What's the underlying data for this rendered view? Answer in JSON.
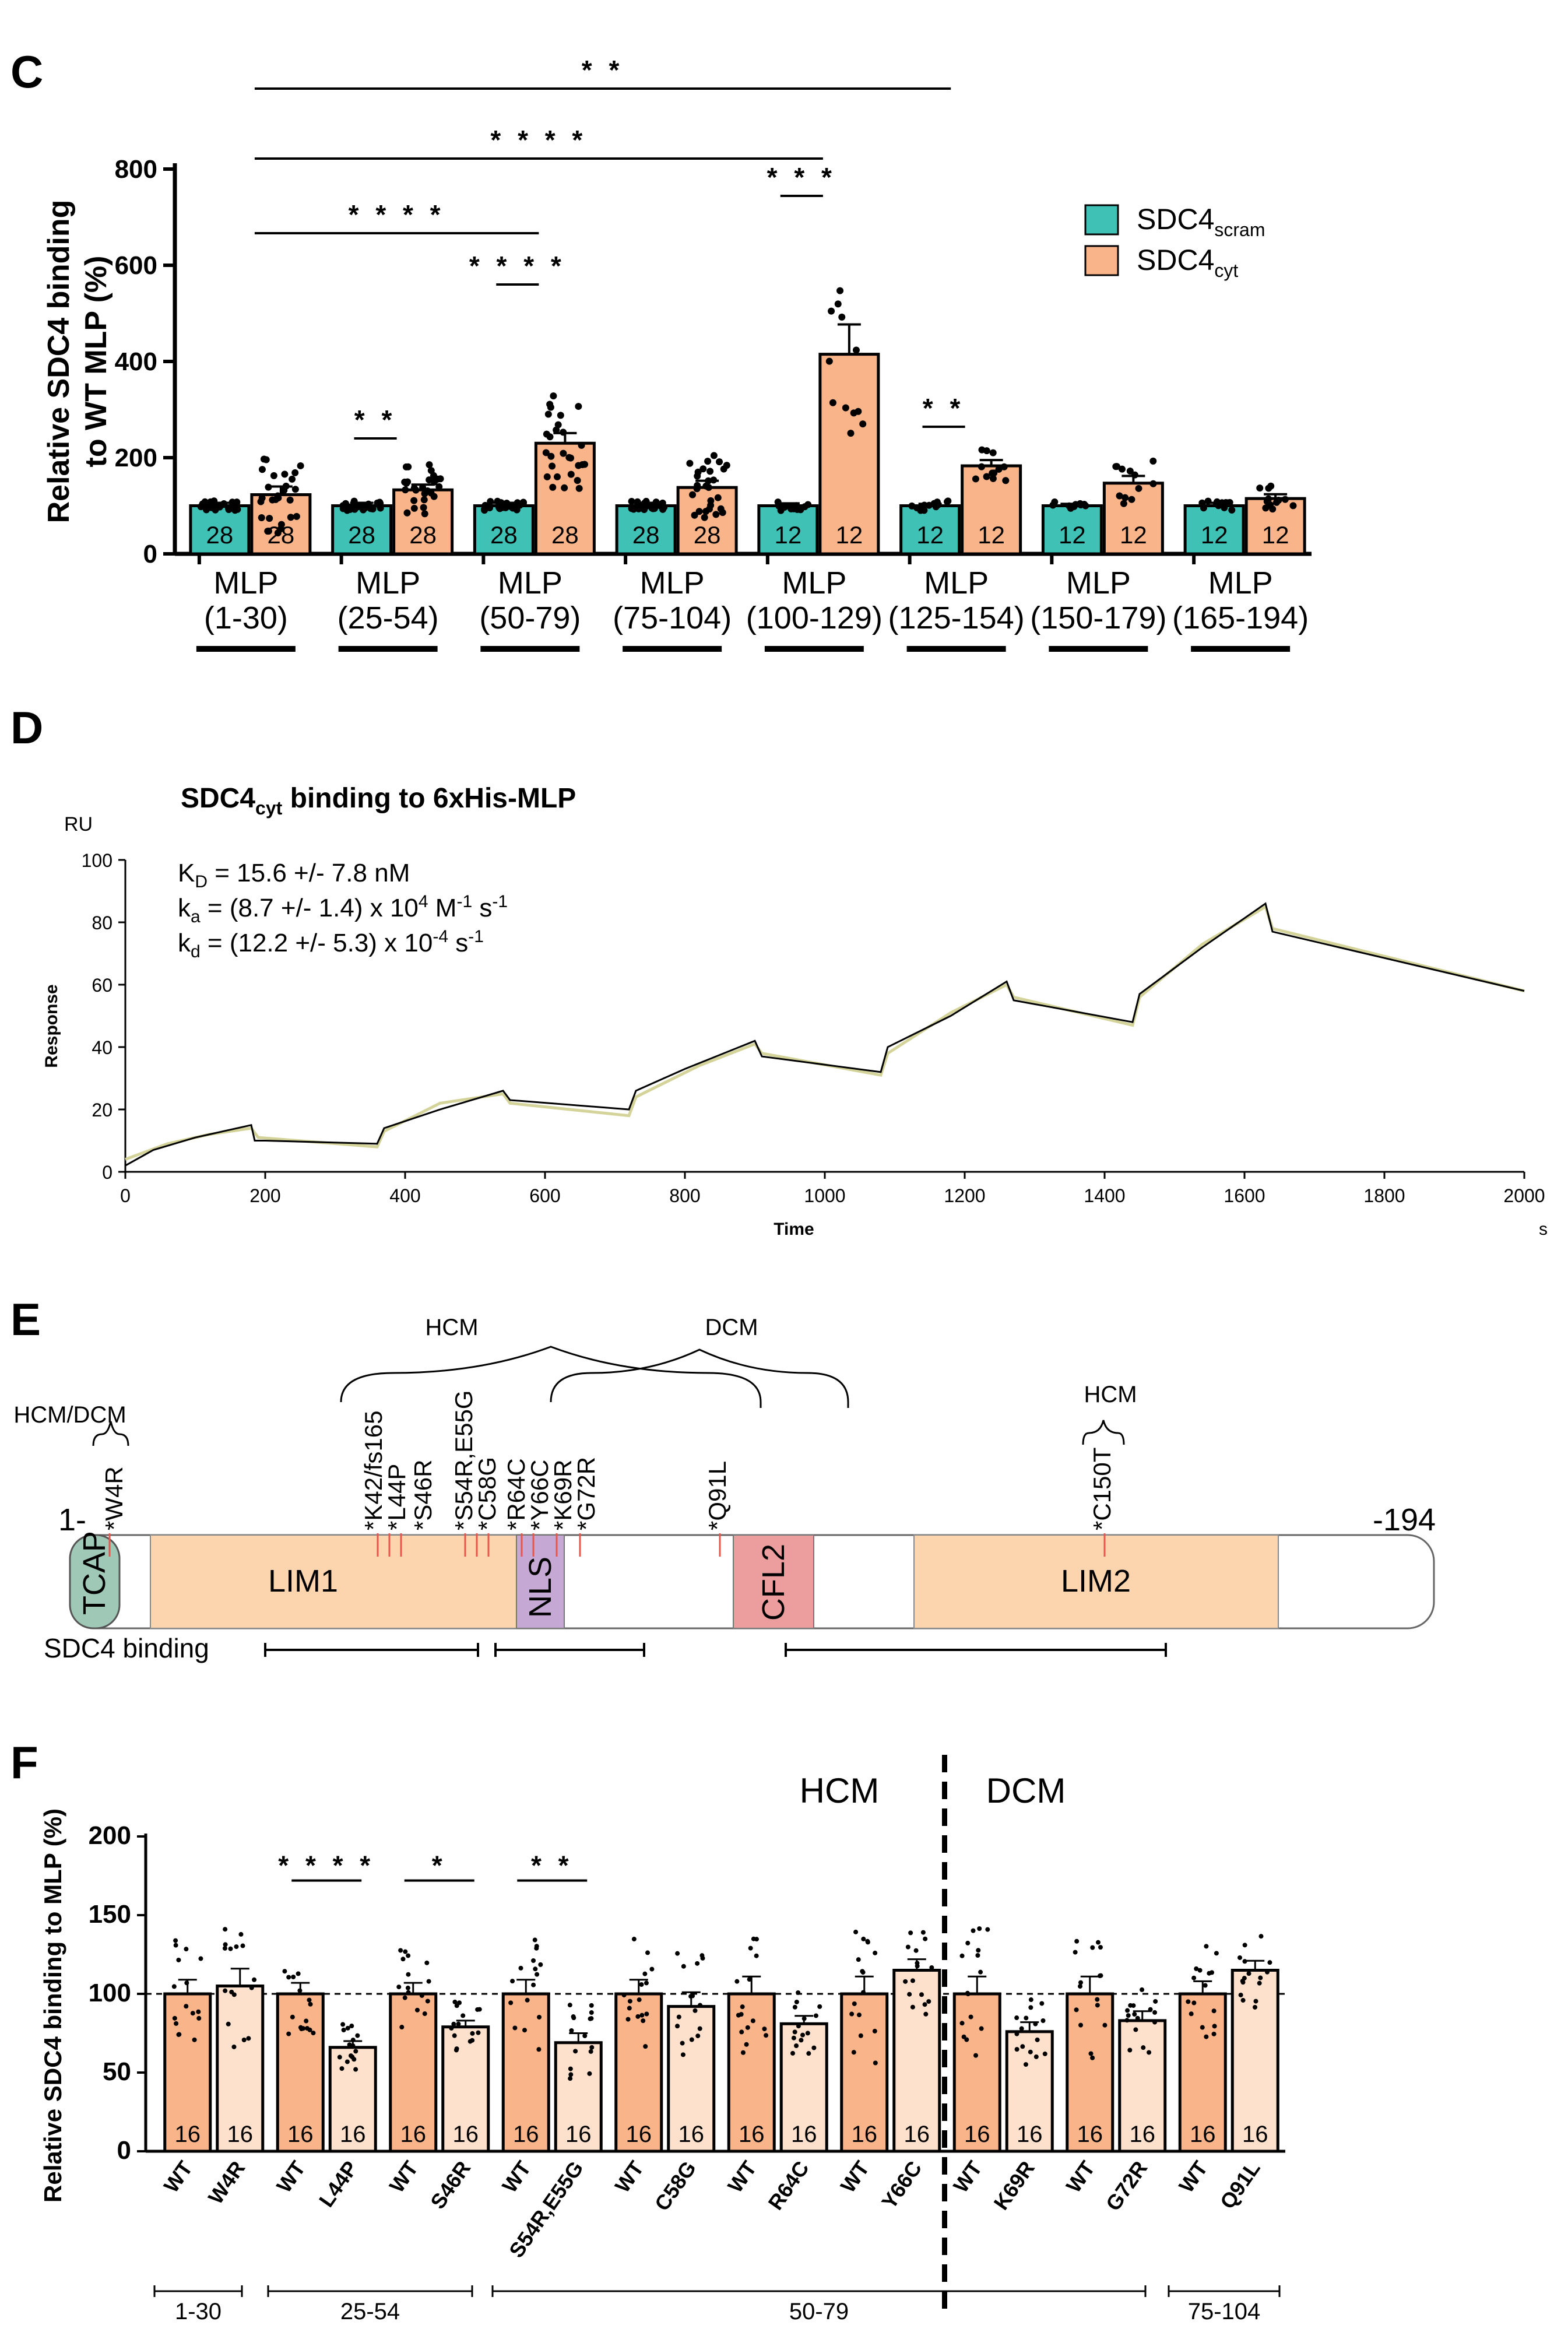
{
  "panels": {
    "C": "C",
    "D": "D",
    "E": "E",
    "F": "F"
  },
  "chart_data": [
    {
      "type": "bar",
      "panel": "C",
      "ylabel_line1": "Relative SDC4 binding",
      "ylabel_line2": "to WT MLP (%)",
      "ylim": [
        0,
        800
      ],
      "yticks": [
        "0",
        "200",
        "400",
        "600",
        "800"
      ],
      "categories": [
        {
          "l1": "MLP",
          "l2": "(1-30)"
        },
        {
          "l1": "MLP",
          "l2": "(25-54)"
        },
        {
          "l1": "MLP",
          "l2": "(50-79)"
        },
        {
          "l1": "MLP",
          "l2": "(75-104)"
        },
        {
          "l1": "MLP",
          "l2": "(100-129)"
        },
        {
          "l1": "MLP",
          "l2": "(125-154)"
        },
        {
          "l1": "MLP",
          "l2": "(150-179)"
        },
        {
          "l1": "MLP",
          "l2": "(165-194)"
        }
      ],
      "series": [
        {
          "name": "SDC4",
          "sub": "scram",
          "color": "#3fc1b5",
          "values": [
            100,
            100,
            100,
            100,
            100,
            100,
            100,
            100
          ],
          "sem": [
            6,
            6,
            6,
            6,
            5,
            4,
            4,
            6
          ],
          "n": [
            "28",
            "28",
            "28",
            "28",
            "12",
            "12",
            "12",
            "12"
          ]
        },
        {
          "name": "SDC4",
          "sub": "cyt",
          "color": "#f9b48a",
          "values": [
            123,
            133,
            230,
            138,
            415,
            183,
            147,
            115
          ],
          "sem": [
            17,
            11,
            21,
            14,
            62,
            12,
            15,
            9
          ],
          "n": [
            "28",
            "28",
            "28",
            "28",
            "12",
            "12",
            "12",
            "12"
          ]
        }
      ],
      "significance": [
        {
          "label": "* *",
          "from": 0,
          "to": 4.9
        },
        {
          "label": "* * * *",
          "from": 0,
          "to": 4
        },
        {
          "label": "* * * *",
          "from": 0,
          "to": 2
        },
        {
          "label": "* * * *",
          "from": 1.7,
          "to": 2
        },
        {
          "label": "* * *",
          "from": 3.7,
          "to": 4
        },
        {
          "label": "* *",
          "from": 0.7,
          "to": 1
        },
        {
          "label": "* *",
          "from": 4.7,
          "to": 5
        }
      ]
    },
    {
      "type": "line",
      "panel": "D",
      "title_pre": "SDC4",
      "title_sub": "cyt",
      "title_post": " binding to 6xHis-MLP",
      "yunit": "RU",
      "ylabel": "Response",
      "xlabel": "Time",
      "xunit": "s",
      "xlim": [
        0,
        2000
      ],
      "ylim": [
        0,
        100
      ],
      "xticks": [
        "0",
        "200",
        "400",
        "600",
        "800",
        "1000",
        "1200",
        "1400",
        "1600",
        "1800",
        "2000"
      ],
      "yticks": [
        "0",
        "20",
        "40",
        "60",
        "80",
        "100"
      ],
      "kinetics": {
        "kd_label": "K",
        "kd_sub": "D",
        "kd_value": " = 15.6 +/- 7.8 nM",
        "ka_label": "k",
        "ka_sub": "a",
        "ka_value": " = (8.7 +/- 1.4) x 10",
        "ka_exp": "4",
        "ka_unit": " M",
        "ka_unit_exp": "-1",
        "ka_s": " s",
        "ka_s_exp": "-1",
        "kdiss_label": "k",
        "kdiss_sub": "d",
        "kdiss_value": " = (12.2 +/- 5.3) x 10",
        "kdiss_exp": "-4",
        "kdiss_s": " s",
        "kdiss_s_exp": "-1"
      },
      "series": [
        {
          "name": "measured",
          "color": "#000000",
          "x": [
            0,
            40,
            100,
            180,
            185,
            200,
            360,
            370,
            450,
            540,
            550,
            720,
            730,
            800,
            900,
            910,
            1080,
            1090,
            1180,
            1260,
            1270,
            1440,
            1450,
            1540,
            1630,
            1640,
            2000
          ],
          "y": [
            2,
            7,
            11,
            15,
            10,
            10,
            9,
            14,
            20,
            26,
            23,
            20,
            26,
            33,
            42,
            37,
            32,
            40,
            50,
            61,
            55,
            48,
            57,
            72,
            86,
            77,
            58
          ]
        },
        {
          "name": "fit",
          "color": "#d4d49a",
          "x": [
            0,
            60,
            120,
            180,
            190,
            360,
            370,
            450,
            540,
            550,
            720,
            730,
            820,
            900,
            910,
            1080,
            1090,
            1180,
            1260,
            1270,
            1440,
            1450,
            1540,
            1630,
            1640,
            2000
          ],
          "y": [
            4,
            9,
            12,
            14,
            11,
            8,
            13,
            22,
            25,
            22,
            18,
            24,
            34,
            41,
            38,
            31,
            38,
            51,
            60,
            56,
            47,
            56,
            73,
            85,
            78,
            58
          ]
        }
      ]
    },
    {
      "type": "bar",
      "panel": "F",
      "ylabel": "Relative SDC4 binding to MLP (%)",
      "ylim": [
        0,
        200
      ],
      "yticks": [
        "0",
        "50",
        "100",
        "150",
        "200"
      ],
      "reference_line": 100,
      "group_labels": {
        "hcm": "HCM",
        "dcm": "DCM"
      },
      "pairs": [
        {
          "wt_label": "WT",
          "mut_label": "W4R",
          "wt": 100,
          "wt_sem": 9,
          "mut": 105,
          "mut_sem": 11,
          "sig": ""
        },
        {
          "wt_label": "WT",
          "mut_label": "L44P",
          "wt": 100,
          "wt_sem": 7,
          "mut": 66,
          "mut_sem": 4,
          "sig": "* * * *"
        },
        {
          "wt_label": "WT",
          "mut_label": "S46R",
          "wt": 100,
          "wt_sem": 7,
          "mut": 79,
          "mut_sem": 4,
          "sig": "*"
        },
        {
          "wt_label": "WT",
          "mut_label": "S54R,E55G",
          "wt": 100,
          "wt_sem": 9,
          "mut": 69,
          "mut_sem": 6,
          "sig": "* *"
        },
        {
          "wt_label": "WT",
          "mut_label": "C58G",
          "wt": 100,
          "wt_sem": 9,
          "mut": 92,
          "mut_sem": 9,
          "sig": ""
        },
        {
          "wt_label": "WT",
          "mut_label": "R64C",
          "wt": 100,
          "wt_sem": 11,
          "mut": 81,
          "mut_sem": 5,
          "sig": ""
        },
        {
          "wt_label": "WT",
          "mut_label": "Y66C",
          "wt": 100,
          "wt_sem": 11,
          "mut": 115,
          "mut_sem": 7,
          "sig": ""
        },
        {
          "wt_label": "WT",
          "mut_label": "K69R",
          "wt": 100,
          "wt_sem": 11,
          "mut": 76,
          "mut_sem": 6,
          "sig": ""
        },
        {
          "wt_label": "WT",
          "mut_label": "G72R",
          "wt": 100,
          "wt_sem": 11,
          "mut": 83,
          "mut_sem": 6,
          "sig": ""
        },
        {
          "wt_label": "WT",
          "mut_label": "Q91L",
          "wt": 100,
          "wt_sem": 8,
          "mut": 115,
          "mut_sem": 6,
          "sig": ""
        }
      ],
      "n_label": "16",
      "ranges": [
        {
          "label": "1-30"
        },
        {
          "label": "25-54"
        },
        {
          "label": "50-79"
        },
        {
          "label": "75-104"
        }
      ]
    }
  ],
  "diagram_E": {
    "start": "1-",
    "end": "-194",
    "domains": {
      "tcap": "TCAP",
      "lim1": "LIM1",
      "nls": "NLS",
      "cfl2": "CFL2",
      "lim2": "LIM2"
    },
    "disease_labels": {
      "hcm_dcm": "HCM/DCM",
      "hcm_left": "HCM",
      "dcm": "DCM",
      "hcm_right": "HCM"
    },
    "mutations": [
      "*W4R",
      "*K42/fs165",
      "*L44P",
      "*S46R",
      "*S54R,E55G",
      "*C58G",
      "*R64C",
      "*Y66C",
      "*K69R",
      "*G72R",
      "*Q91L",
      "*C150T"
    ],
    "binding_label": "SDC4 binding"
  }
}
